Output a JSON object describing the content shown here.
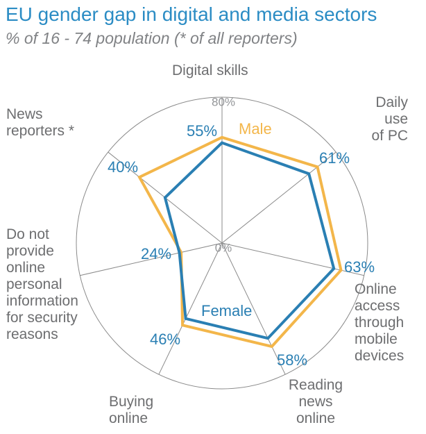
{
  "chart_data": {
    "type": "radar",
    "title": "EU gender gap in digital and media sectors",
    "subtitle": "% of 16 - 74 population (* of all reporters)",
    "categories": [
      "Digital skills",
      "Daily\nuse\nof PC",
      "Online\naccess\nthrough\nmobile\ndevices",
      "Reading\nnews\nonline",
      "Buying\nonline",
      "Do not\nprovide\nonline\npersonal\ninformation\nfor security\nreasons",
      "News\nreporters *"
    ],
    "rlim": [
      0,
      80
    ],
    "rticks": [
      {
        "value": 0,
        "label": "0%"
      },
      {
        "value": 80,
        "label": "80%"
      }
    ],
    "grid": true,
    "series": [
      {
        "name": "Male",
        "color": "#f3b64a",
        "values": [
          58,
          67,
          67,
          63,
          50,
          23,
          58
        ]
      },
      {
        "name": "Female",
        "color": "#2a7fb3",
        "values": [
          55,
          61,
          63,
          58,
          46,
          24,
          40
        ],
        "value_labels": [
          "55%",
          "61%",
          "63%",
          "58%",
          "46%",
          "24%",
          "40%"
        ]
      }
    ]
  }
}
